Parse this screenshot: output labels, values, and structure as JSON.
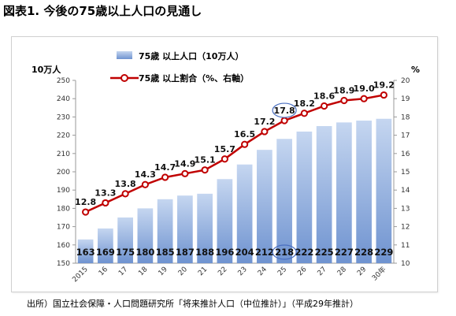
{
  "title": "図表1. 今後の75歳以上人口の見通し",
  "source": "出所）国立社会保障・人口問題研究所「将来推計人口（中位推計）」（平成29年推計）",
  "chart_data": {
    "type": "bar",
    "categories": [
      "2015",
      "16",
      "17",
      "18",
      "19",
      "20",
      "21",
      "22",
      "23",
      "24",
      "25",
      "26",
      "27",
      "28",
      "29",
      "30年"
    ],
    "series": [
      {
        "name": "75歳 以上人口（10万人）",
        "type": "bar",
        "axis": "left",
        "values": [
          163,
          169,
          175,
          180,
          185,
          187,
          188,
          196,
          204,
          212,
          218,
          222,
          225,
          227,
          228,
          229
        ]
      },
      {
        "name": "75歳 以上割合（%、右軸）",
        "type": "line",
        "axis": "right",
        "values": [
          12.8,
          13.3,
          13.8,
          14.3,
          14.7,
          14.9,
          15.1,
          15.7,
          16.5,
          17.2,
          17.8,
          18.2,
          18.6,
          18.9,
          19.0,
          19.2
        ]
      }
    ],
    "ylabel_left": "10万人",
    "ylabel_right": "%",
    "ylim_left": [
      150,
      250
    ],
    "ylim_right": [
      10,
      20
    ],
    "yticks_left": [
      150,
      160,
      170,
      180,
      190,
      200,
      210,
      220,
      230,
      240,
      250
    ],
    "yticks_right": [
      10,
      11,
      12,
      13,
      14,
      15,
      16,
      17,
      18,
      19,
      20
    ],
    "highlight_index": 10,
    "grid": false,
    "legend_position": "top-center",
    "colors": {
      "bar_top": "#c5d6f0",
      "bar_bottom": "#6f93d0",
      "line": "#c00000",
      "marker_fill": "#ffffff",
      "highlight": "#4a6fc0"
    }
  }
}
